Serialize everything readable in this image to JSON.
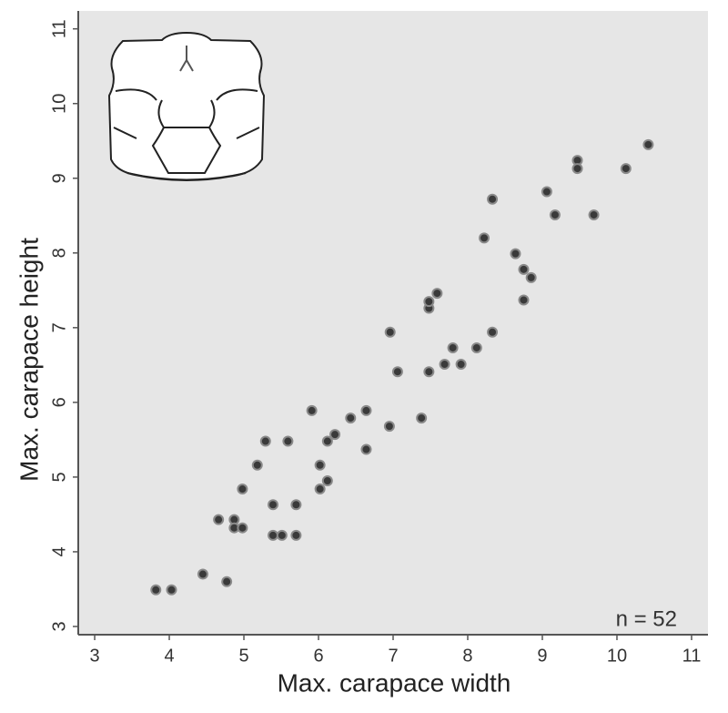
{
  "chart_data": {
    "type": "scatter",
    "x_label": "Max. carapace width",
    "y_label": "Max. carapace height",
    "annotation": "n = 52",
    "color": "#3a3a3a",
    "xlim": [
      2.78,
      11.22
    ],
    "xticks": [
      3,
      4,
      5,
      6,
      7,
      8,
      9,
      10,
      11
    ],
    "ylim": [
      2.89,
      11.24
    ],
    "yticks": [
      3,
      4,
      5,
      6,
      7,
      8,
      9,
      10,
      11
    ],
    "grid": false,
    "x": [
      3.82,
      4.03,
      4.45,
      4.77,
      4.66,
      4.87,
      4.87,
      4.98,
      4.98,
      5.18,
      5.29,
      5.39,
      5.51,
      5.39,
      5.59,
      5.7,
      5.7,
      5.91,
      6.02,
      6.02,
      6.12,
      6.12,
      6.22,
      6.43,
      6.64,
      6.64,
      6.95,
      6.96,
      7.06,
      7.38,
      7.48,
      7.48,
      7.48,
      7.59,
      7.69,
      7.8,
      7.91,
      8.12,
      8.33,
      8.22,
      8.33,
      8.64,
      8.75,
      8.85,
      8.75,
      9.06,
      9.17,
      9.47,
      9.47,
      9.69,
      10.12,
      10.42
    ],
    "values": [
      3.49,
      3.49,
      3.7,
      3.6,
      4.43,
      4.43,
      4.32,
      4.32,
      4.84,
      5.16,
      5.48,
      4.22,
      4.22,
      4.63,
      5.48,
      4.22,
      4.63,
      5.89,
      4.84,
      5.16,
      4.95,
      5.48,
      5.57,
      5.79,
      5.37,
      5.89,
      5.68,
      6.94,
      6.41,
      5.79,
      6.41,
      7.26,
      7.35,
      7.46,
      6.51,
      6.73,
      6.51,
      6.73,
      6.94,
      8.2,
      8.72,
      7.99,
      7.78,
      7.67,
      7.37,
      8.82,
      8.51,
      9.24,
      9.13,
      8.51,
      9.13,
      9.45
    ]
  }
}
